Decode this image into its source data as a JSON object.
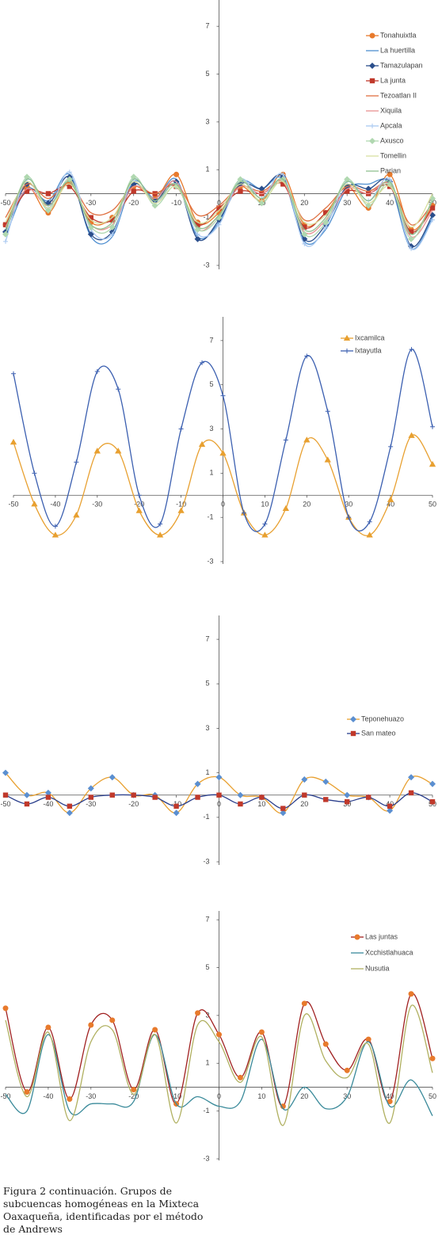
{
  "chart_data": [
    {
      "type": "line",
      "x": [
        -50,
        -45,
        -40,
        -35,
        -30,
        -25,
        -20,
        -15,
        -10,
        -5,
        0,
        5,
        10,
        15,
        20,
        25,
        30,
        35,
        40,
        45,
        50
      ],
      "xlim": [
        -50,
        50
      ],
      "xticks": [
        -50,
        -40,
        -30,
        -20,
        -10,
        0,
        10,
        20,
        30,
        40,
        50
      ],
      "ylim": [
        -3,
        8
      ],
      "yticks": [
        -3,
        -1,
        1,
        3,
        5,
        7
      ],
      "legend": "upper right",
      "series": [
        {
          "name": "Tonahuixtla",
          "color": "#e87a2c",
          "marker": "circle",
          "values": [
            -1.3,
            0.3,
            -0.8,
            0.5,
            -1.2,
            -1.0,
            0.3,
            -0.2,
            0.8,
            -1.2,
            -0.8,
            0.3,
            -0.3,
            0.8,
            -1.3,
            -0.8,
            0.3,
            -0.6,
            0.8,
            -1.5,
            -0.5
          ]
        },
        {
          "name": "La huertilla",
          "color": "#4f8fd0",
          "marker": "none",
          "values": [
            -1.8,
            0.2,
            -0.3,
            0.8,
            -1.8,
            -1.8,
            0.5,
            -0.2,
            0.6,
            -1.8,
            -1.2,
            0.5,
            0.2,
            0.6,
            -2.0,
            -1.5,
            0.2,
            0.4,
            0.4,
            -2.3,
            -1.0
          ]
        },
        {
          "name": "Tamazulapan",
          "color": "#2b4f8c",
          "marker": "diamond",
          "values": [
            -1.6,
            0.4,
            -0.4,
            0.7,
            -1.7,
            -1.6,
            0.4,
            -0.3,
            0.5,
            -1.9,
            -1.1,
            0.4,
            0.2,
            0.7,
            -1.9,
            -1.3,
            0.3,
            0.2,
            0.5,
            -2.2,
            -0.9
          ]
        },
        {
          "name": "La junta",
          "color": "#c0392b",
          "marker": "square",
          "values": [
            -1.3,
            0.1,
            0.0,
            0.3,
            -1.0,
            -1.1,
            0.1,
            0.0,
            0.3,
            -1.3,
            -0.6,
            0.1,
            0.0,
            0.4,
            -1.4,
            -0.8,
            0.1,
            0.0,
            0.3,
            -1.6,
            -0.6
          ]
        },
        {
          "name": "Tezoatlan II",
          "color": "#e07040",
          "marker": "none",
          "values": [
            -1.0,
            0.4,
            -0.2,
            0.4,
            -0.8,
            -0.7,
            0.3,
            0.0,
            0.4,
            -0.9,
            -0.5,
            0.3,
            0.1,
            0.5,
            -1.1,
            -0.6,
            0.3,
            0.1,
            0.4,
            -1.3,
            -0.4
          ]
        },
        {
          "name": "Xiquila",
          "color": "#e89090",
          "marker": "none",
          "values": [
            -1.4,
            0.2,
            -0.5,
            0.5,
            -1.3,
            -1.3,
            0.3,
            -0.2,
            0.5,
            -1.5,
            -0.9,
            0.3,
            0.0,
            0.5,
            -1.6,
            -1.1,
            0.2,
            0.0,
            0.4,
            -1.8,
            -0.7
          ]
        },
        {
          "name": "Apcala",
          "color": "#a8c8f0",
          "marker": "plus",
          "values": [
            -2.0,
            0.6,
            -0.6,
            0.9,
            -1.5,
            -1.7,
            0.6,
            -0.4,
            0.4,
            -1.7,
            -1.3,
            0.6,
            -0.2,
            0.8,
            -2.1,
            -1.4,
            0.5,
            -0.3,
            0.6,
            -2.3,
            -1.1
          ]
        },
        {
          "name": "Axusco",
          "color": "#b0d8b0",
          "marker": "diamond",
          "values": [
            -1.7,
            0.7,
            -0.7,
            0.6,
            -1.4,
            -1.4,
            0.7,
            -0.5,
            0.3,
            -1.5,
            -1.0,
            0.6,
            -0.4,
            0.6,
            -1.7,
            -1.2,
            0.6,
            -0.5,
            0.4,
            -1.9,
            -0.2
          ]
        },
        {
          "name": "Tomellin",
          "color": "#d8e0a0",
          "marker": "none",
          "values": [
            -1.2,
            0.5,
            -0.6,
            0.4,
            -1.1,
            -1.0,
            0.5,
            -0.4,
            0.3,
            -1.2,
            -0.7,
            0.4,
            -0.3,
            0.5,
            -1.2,
            -0.9,
            0.4,
            -0.4,
            0.3,
            -1.4,
            0.0
          ]
        },
        {
          "name": "Parian",
          "color": "#90c090",
          "marker": "none",
          "values": [
            -1.5,
            0.6,
            -0.5,
            0.5,
            -1.3,
            -1.2,
            0.6,
            -0.3,
            0.4,
            -1.4,
            -0.9,
            0.5,
            -0.2,
            0.6,
            -1.5,
            -1.0,
            0.5,
            -0.3,
            0.5,
            -1.7,
            -0.3
          ]
        }
      ]
    },
    {
      "type": "line",
      "x": [
        -50,
        -45,
        -40,
        -35,
        -30,
        -25,
        -20,
        -15,
        -10,
        -5,
        0,
        5,
        10,
        15,
        20,
        25,
        30,
        35,
        40,
        45,
        50
      ],
      "xlim": [
        -50,
        50
      ],
      "xticks": [
        -50,
        -40,
        -30,
        -20,
        -10,
        0,
        10,
        20,
        30,
        40,
        50
      ],
      "ylim": [
        -3,
        8
      ],
      "yticks": [
        -3,
        -1,
        1,
        3,
        5,
        7
      ],
      "legend": "upper right",
      "series": [
        {
          "name": "Ixcamilca",
          "color": "#e8a030",
          "marker": "triangle",
          "values": [
            2.4,
            -0.4,
            -1.8,
            -0.9,
            2.0,
            2.0,
            -0.7,
            -1.8,
            -0.7,
            2.3,
            1.9,
            -0.8,
            -1.8,
            -0.6,
            2.5,
            1.6,
            -1.0,
            -1.8,
            -0.2,
            2.7,
            1.4
          ]
        },
        {
          "name": "Ixtayutla",
          "color": "#3b5fb0",
          "marker": "plus",
          "values": [
            5.5,
            1.0,
            -1.4,
            1.5,
            5.6,
            4.8,
            0.0,
            -1.3,
            3.0,
            6.0,
            4.5,
            -0.8,
            -1.3,
            2.5,
            6.3,
            3.8,
            -1.0,
            -1.2,
            2.2,
            6.6,
            3.1
          ]
        }
      ]
    },
    {
      "type": "line",
      "x": [
        -50,
        -45,
        -40,
        -35,
        -30,
        -25,
        -20,
        -15,
        -10,
        -5,
        0,
        5,
        10,
        15,
        20,
        25,
        30,
        35,
        40,
        45,
        50
      ],
      "xlim": [
        -50,
        50
      ],
      "xticks": [
        -50,
        -40,
        -30,
        -20,
        -10,
        0,
        10,
        20,
        30,
        40,
        50
      ],
      "ylim": [
        -3,
        8
      ],
      "yticks": [
        -3,
        -1,
        1,
        3,
        5,
        7
      ],
      "legend": "upper right",
      "series": [
        {
          "name": "Teponehuazo",
          "color": "#5b8fd0",
          "line_color": "#e8a030",
          "marker": "diamond",
          "values": [
            1.0,
            0.0,
            0.1,
            -0.8,
            0.3,
            0.8,
            0.0,
            0.0,
            -0.8,
            0.5,
            0.8,
            0.0,
            -0.1,
            -0.8,
            0.7,
            0.6,
            0.0,
            -0.1,
            -0.7,
            0.8,
            0.5
          ]
        },
        {
          "name": "San mateo",
          "color": "#c0392b",
          "line_color": "#2b3f8c",
          "marker": "square",
          "values": [
            0.0,
            -0.4,
            -0.1,
            -0.5,
            -0.1,
            0.0,
            0.0,
            -0.1,
            -0.5,
            -0.1,
            0.0,
            -0.4,
            -0.1,
            -0.6,
            0.0,
            -0.2,
            -0.3,
            -0.1,
            -0.5,
            0.1,
            -0.3
          ]
        }
      ]
    },
    {
      "type": "line",
      "x": [
        -50,
        -45,
        -40,
        -35,
        -30,
        -25,
        -20,
        -15,
        -10,
        -5,
        0,
        5,
        10,
        15,
        20,
        25,
        30,
        35,
        40,
        45,
        50
      ],
      "xlim": [
        -50,
        50
      ],
      "xticks": [
        -50,
        -40,
        -30,
        -20,
        -10,
        0,
        10,
        20,
        30,
        40,
        50
      ],
      "ylim": [
        -3,
        8
      ],
      "yticks": [
        -3,
        -1,
        1,
        3,
        5,
        7
      ],
      "legend": "upper right",
      "series": [
        {
          "name": "Las juntas",
          "color": "#e87a2c",
          "line_color": "#a02020",
          "marker": "circle",
          "values": [
            3.3,
            -0.2,
            2.5,
            -0.5,
            2.6,
            2.8,
            -0.1,
            2.4,
            -0.7,
            3.1,
            2.2,
            0.4,
            2.3,
            -0.8,
            3.5,
            1.8,
            0.7,
            2.0,
            -0.6,
            3.9,
            1.2
          ]
        },
        {
          "name": "Xcchistlahuaca",
          "color": "#3a8a9a",
          "marker": "none",
          "values": [
            -0.3,
            -1.0,
            2.2,
            -1.0,
            -0.7,
            -0.7,
            -0.6,
            2.2,
            -0.7,
            -0.4,
            -0.8,
            -0.6,
            2.0,
            -0.9,
            0.0,
            -0.9,
            -0.4,
            1.9,
            -0.8,
            0.3,
            -1.2
          ]
        },
        {
          "name": "Nusutia",
          "color": "#b0b060",
          "marker": "none",
          "values": [
            2.8,
            -0.4,
            2.3,
            -1.4,
            1.9,
            2.4,
            -0.3,
            2.2,
            -1.5,
            2.6,
            1.9,
            0.2,
            2.1,
            -1.6,
            3.0,
            1.1,
            0.4,
            1.8,
            -1.5,
            3.4,
            0.6
          ]
        }
      ]
    }
  ],
  "caption": [
    "Figura 2 continuación. Grupos de",
    "subcuencas homogéneas en la Mixteca",
    "Oaxaqueña, identificadas por el método",
    "de Andrews"
  ]
}
